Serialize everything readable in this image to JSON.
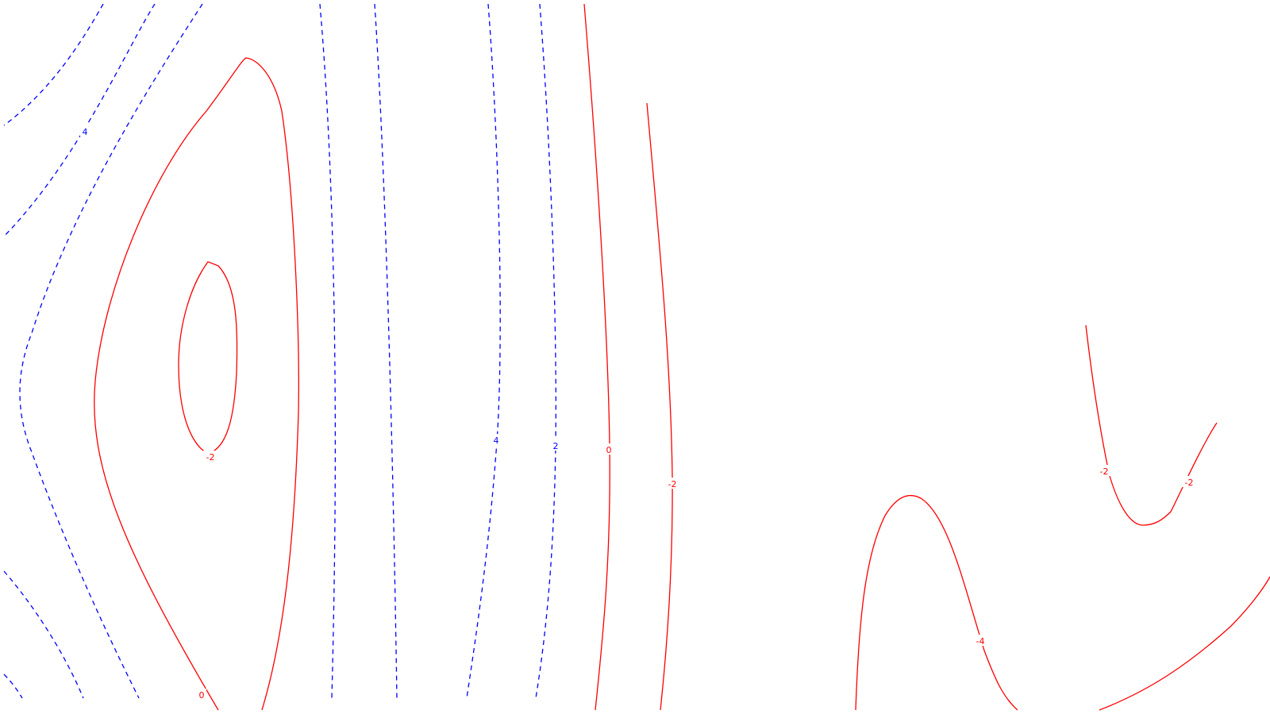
{
  "chart_data": {
    "type": "contour",
    "title": "",
    "xlabel": "",
    "ylabel": "",
    "grid": false,
    "legend": "none",
    "colors": {
      "positive": "#0000ff",
      "negative": "#ff0000",
      "zero": "#ff0000"
    },
    "line_styles": {
      "positive": "dashed",
      "negative": "solid",
      "zero": "solid"
    },
    "levels": [
      -4,
      -2,
      0,
      2,
      4
    ],
    "contour_labels": [
      {
        "id": "pos4-left",
        "text": "4",
        "level": 4
      },
      {
        "id": "neg2-inner",
        "text": "-2",
        "level": -2
      },
      {
        "id": "zero-left",
        "text": "0",
        "level": 0
      },
      {
        "id": "pos4-mid",
        "text": "4",
        "level": 4
      },
      {
        "id": "pos2-mid",
        "text": "2",
        "level": 2
      },
      {
        "id": "zero-mid",
        "text": "0",
        "level": 0
      },
      {
        "id": "neg2-mid",
        "text": "-2",
        "level": -2
      },
      {
        "id": "neg4-right",
        "text": "-4",
        "level": -4
      },
      {
        "id": "neg2-right-a",
        "text": "-2",
        "level": -2
      },
      {
        "id": "neg2-right-b",
        "text": "-2",
        "level": -2
      }
    ]
  }
}
